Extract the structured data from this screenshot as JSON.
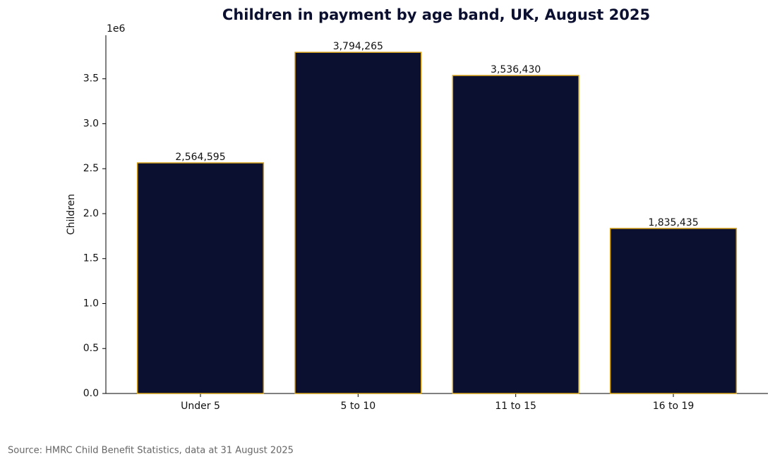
{
  "chart_data": {
    "type": "bar",
    "title": "Children in payment by age band, UK, August 2025",
    "y_label": "Children",
    "y_offset_label": "1e6",
    "source": "Source: HMRC Child Benefit Statistics, data at 31 August 2025",
    "categories": [
      "Under 5",
      "5 to 10",
      "11 to 15",
      "16 to 19"
    ],
    "values": [
      2564595,
      3794265,
      3536430,
      1835435
    ],
    "value_labels": [
      "2,564,595",
      "3,794,265",
      "3,536,430",
      "1,835,435"
    ],
    "color": "#0c1030",
    "edge_color": "#d4a017",
    "ylim": [
      0,
      3984000
    ],
    "yticks": [
      {
        "value": 0,
        "label": "0.0"
      },
      {
        "value": 500000,
        "label": "0.5"
      },
      {
        "value": 1000000,
        "label": "1.0"
      },
      {
        "value": 1500000,
        "label": "1.5"
      },
      {
        "value": 2000000,
        "label": "2.0"
      },
      {
        "value": 2500000,
        "label": "2.5"
      },
      {
        "value": 3000000,
        "label": "3.0"
      },
      {
        "value": 3500000,
        "label": "3.5"
      }
    ],
    "grid": false
  }
}
